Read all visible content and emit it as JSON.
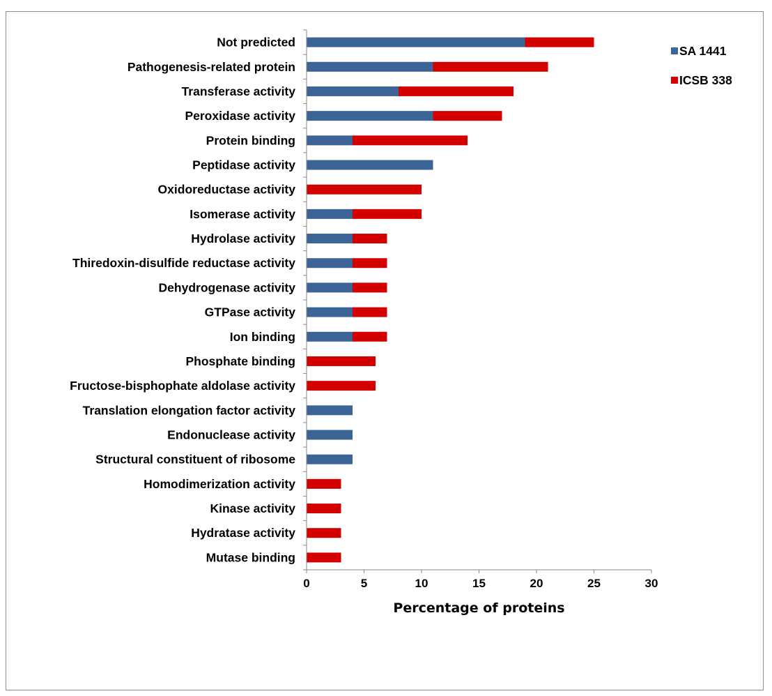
{
  "chart_data": {
    "type": "bar",
    "orientation": "horizontal",
    "stacked": true,
    "categories": [
      "Not predicted",
      "Pathogenesis-related protein",
      "Transferase activity",
      "Peroxidase activity",
      "Protein binding",
      "Peptidase activity",
      "Oxidoreductase activity",
      "Isomerase activity",
      "Hydrolase activity",
      "Thiredoxin-disulfide reductase activity",
      "Dehydrogenase activity",
      "GTPase activity",
      "Ion binding",
      "Phosphate binding",
      "Fructose-bisphophate aldolase activity",
      "Translation elongation factor activity",
      "Endonuclease activity",
      "Structural constituent of ribosome",
      "Homodimerization activity",
      "Kinase activity",
      "Hydratase activity",
      "Mutase binding"
    ],
    "series": [
      {
        "name": "SA 1441",
        "color": "#3d6496",
        "values": [
          19,
          11,
          8,
          11,
          4,
          11,
          0,
          4,
          4,
          4,
          4,
          4,
          4,
          0,
          0,
          4,
          4,
          4,
          0,
          0,
          0,
          0
        ]
      },
      {
        "name": "ICSB 338",
        "color": "#d40000",
        "values": [
          6,
          10,
          10,
          6,
          10,
          0,
          10,
          6,
          3,
          3,
          3,
          3,
          3,
          6,
          6,
          0,
          0,
          0,
          3,
          3,
          3,
          3
        ]
      }
    ],
    "xlabel": "Percentage of proteins",
    "xlim": [
      0,
      30
    ],
    "xticks": [
      "0",
      "5",
      "10",
      "15",
      "20",
      "25",
      "30"
    ],
    "grid": false,
    "legend_position": "top-right"
  }
}
